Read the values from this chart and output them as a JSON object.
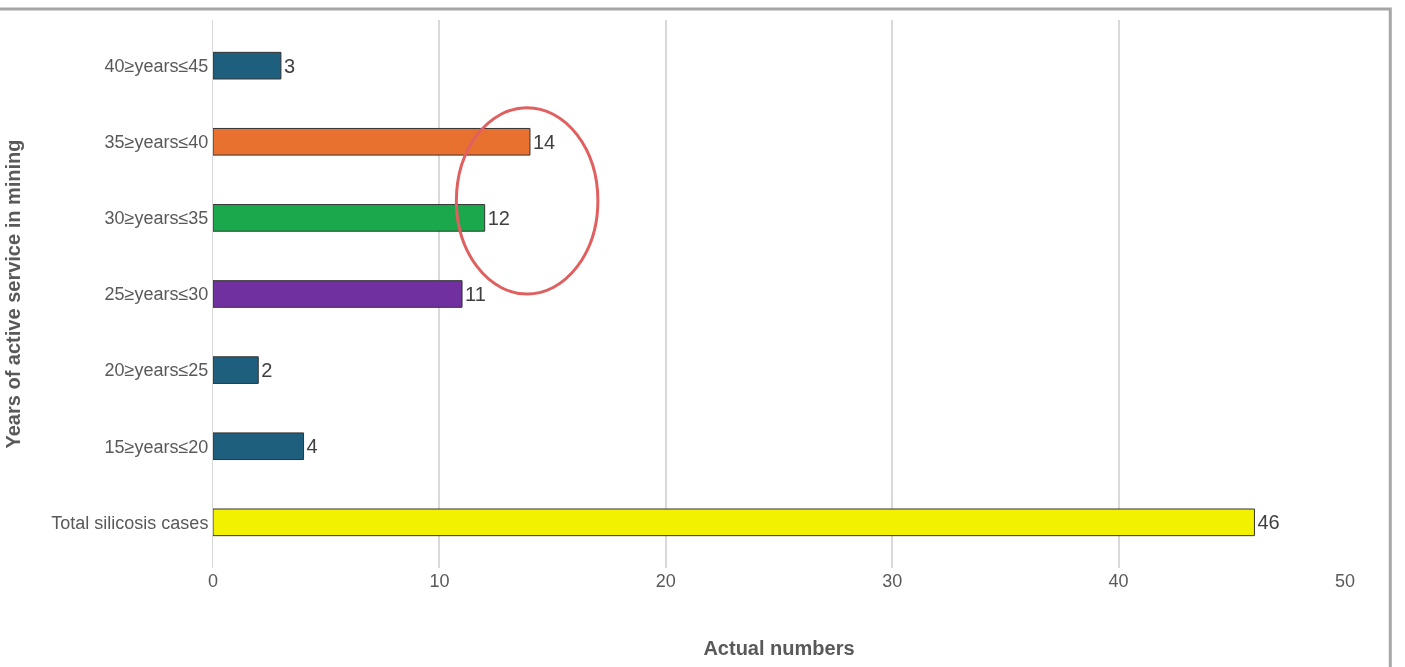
{
  "chart_data": {
    "type": "bar",
    "orientation": "horizontal",
    "categories": [
      "40≥years≤45",
      "35≥years≤40",
      "30≥years≤35",
      "25≥years≤30",
      "20≥years≤25",
      "15≥years≤20",
      "Total silicosis cases"
    ],
    "values": [
      3,
      14,
      12,
      11,
      2,
      4,
      46
    ],
    "colors": [
      "#1f5f7e",
      "#e8712f",
      "#1ba84c",
      "#7030a0",
      "#1f5f7e",
      "#1f5f7e",
      "#f2f200"
    ],
    "xlabel": "Actual numbers",
    "ylabel": "Years of active service in mining",
    "xlim": [
      0,
      50
    ],
    "xticks": [
      0,
      10,
      20,
      30,
      40,
      50
    ],
    "grid": "x",
    "data_labels": true,
    "legend": false
  }
}
